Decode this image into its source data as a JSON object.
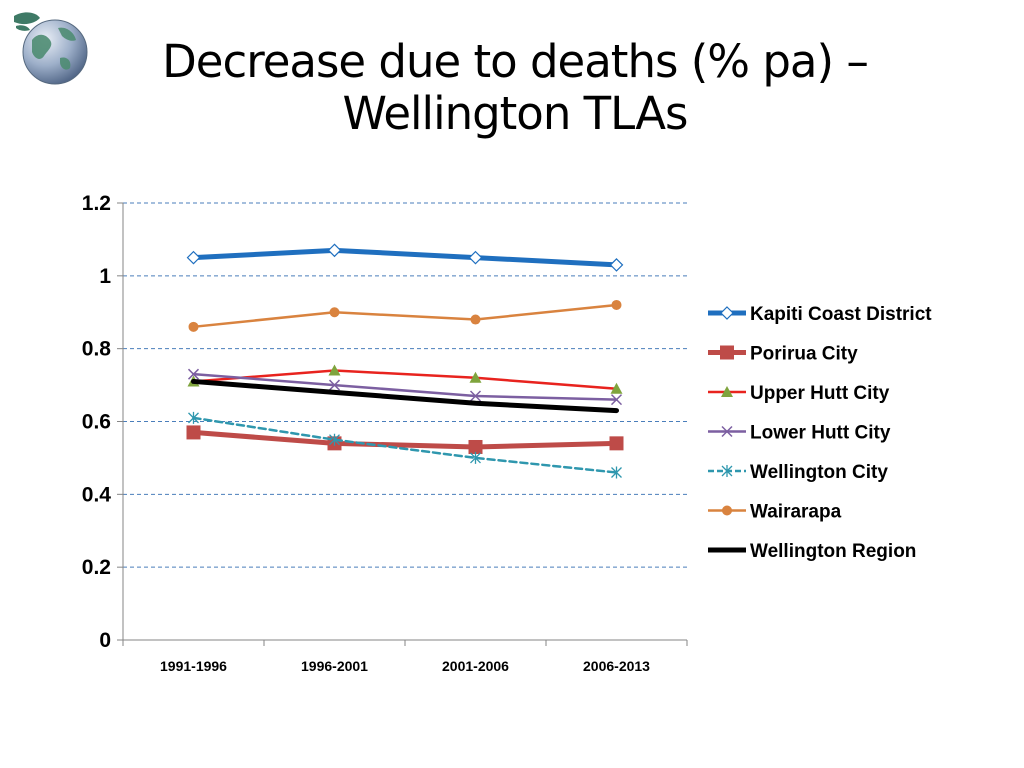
{
  "slide": {
    "title_line1": "Decrease due to deaths (% pa) –",
    "title_line2": "Wellington TLAs"
  },
  "icons": {
    "logo": "globe-icon"
  },
  "chart_data": {
    "type": "line",
    "title": "Decrease due to deaths (% pa) – Wellington TLAs",
    "categories": [
      "1991-1996",
      "1996-2001",
      "2001-2006",
      "2006-2013"
    ],
    "ylim": [
      0,
      1.2
    ],
    "yticks": [
      0,
      0.2,
      0.4,
      0.6,
      0.8,
      1,
      1.2
    ],
    "ytick_labels": [
      "0",
      "0.2",
      "0.4",
      "0.6",
      "0.8",
      "1",
      "1.2"
    ],
    "grid": true,
    "legend_position": "right",
    "series": [
      {
        "name": "Kapiti Coast District",
        "values": [
          1.05,
          1.07,
          1.05,
          1.03
        ],
        "color": "#1F6FBF",
        "marker": "diamond",
        "dash": false,
        "weight": "heavy"
      },
      {
        "name": "Porirua City",
        "values": [
          0.57,
          0.54,
          0.53,
          0.54
        ],
        "color": "#BE4B48",
        "marker": "square",
        "dash": false,
        "weight": "heavy"
      },
      {
        "name": "Upper Hutt City",
        "values": [
          0.71,
          0.74,
          0.72,
          0.69
        ],
        "color": "#E8231E",
        "marker": "triangle",
        "marker_color": "#7FA43D",
        "dash": false,
        "weight": "normal"
      },
      {
        "name": "Lower Hutt City",
        "values": [
          0.73,
          0.7,
          0.67,
          0.66
        ],
        "color": "#7C5FA1",
        "marker": "x",
        "dash": false,
        "weight": "normal"
      },
      {
        "name": "Wellington City",
        "values": [
          0.61,
          0.55,
          0.5,
          0.46
        ],
        "color": "#2F97AE",
        "marker": "star",
        "dash": true,
        "weight": "normal"
      },
      {
        "name": "Wairarapa",
        "values": [
          0.86,
          0.9,
          0.88,
          0.92
        ],
        "color": "#D9833F",
        "marker": "circle",
        "dash": false,
        "weight": "normal"
      },
      {
        "name": "Wellington Region",
        "values": [
          0.71,
          0.68,
          0.65,
          0.63
        ],
        "color": "#000000",
        "marker": "none",
        "dash": false,
        "weight": "heavy"
      }
    ]
  }
}
